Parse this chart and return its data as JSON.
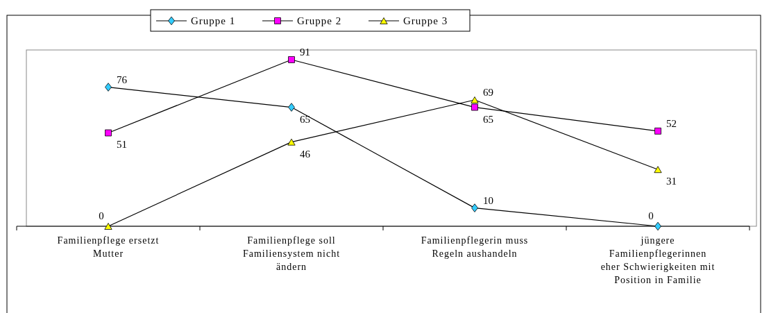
{
  "chart_data": {
    "type": "line",
    "categories": [
      "Familienpflege ersetzt Mutter",
      "Familienpflege soll Familiensystem nicht ändern",
      "Familienpflegerin muss Regeln aushandeln",
      "jüngere Familienpflegerinnen eher Schwierigkeiten mit Position in Familie"
    ],
    "series": [
      {
        "name": "Gruppe 1",
        "color": "#33ccff",
        "marker": "diamond",
        "values": [
          76,
          65,
          10,
          0
        ]
      },
      {
        "name": "Gruppe 2",
        "color": "#ff00ff",
        "marker": "square",
        "values": [
          51,
          91,
          65,
          52
        ]
      },
      {
        "name": "Gruppe 3",
        "color": "#ffff00",
        "marker": "triangle",
        "values": [
          0,
          46,
          69,
          31
        ]
      }
    ],
    "data_labels": true,
    "legend": "top"
  }
}
